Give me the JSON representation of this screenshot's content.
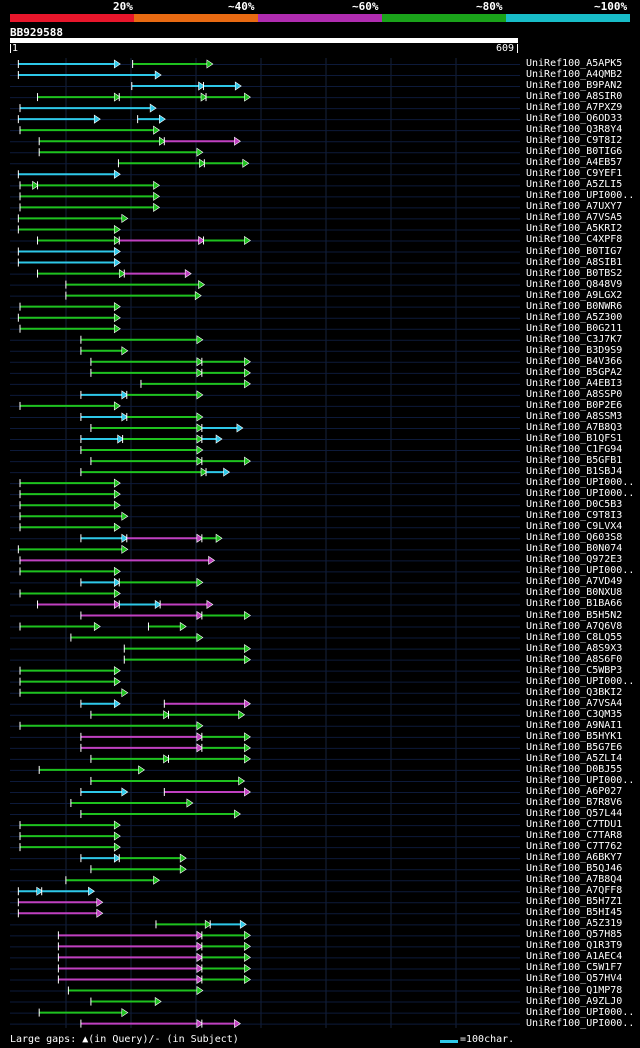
{
  "identity_legend": {
    "labels": [
      "20%",
      "~40%",
      "~60%",
      "~80%",
      "~100%"
    ],
    "colors": [
      "#e8162b",
      "#e86a12",
      "#b02cb0",
      "#1aa31a",
      "#18bcc8"
    ]
  },
  "query": {
    "id": "BB929588",
    "start": "1",
    "end": "609",
    "length": 609
  },
  "colors": {
    "cyan": "#2ec8e8",
    "green": "#1ec21e",
    "magenta": "#c040c0",
    "gridline": "#1e2a44",
    "white": "#ffffff"
  },
  "hits": [
    {
      "label": "UniRef100_A5APK5",
      "segs": [
        [
          10,
          131,
          "c"
        ],
        [
          147,
          242,
          "g"
        ]
      ]
    },
    {
      "label": "UniRef100_A4QMB2",
      "segs": [
        [
          10,
          180,
          "c"
        ]
      ]
    },
    {
      "label": "UniRef100_B9PAN2",
      "segs": [
        [
          146,
          232,
          "c"
        ],
        [
          232,
          276,
          "c"
        ]
      ]
    },
    {
      "label": "UniRef100_A8SIR0",
      "segs": [
        [
          33,
          131,
          "g"
        ],
        [
          131,
          235,
          "g"
        ],
        [
          235,
          287,
          "g"
        ]
      ]
    },
    {
      "label": "UniRef100_A7PXZ9",
      "segs": [
        [
          12,
          174,
          "c"
        ]
      ]
    },
    {
      "label": "UniRef100_Q6OD33",
      "segs": [
        [
          10,
          107,
          "c"
        ],
        [
          153,
          185,
          "c"
        ]
      ]
    },
    {
      "label": "UniRef100_Q3R8Y4",
      "segs": [
        [
          12,
          178,
          "g"
        ]
      ]
    },
    {
      "label": "UniRef100_C9T8I2",
      "segs": [
        [
          35,
          185,
          "g"
        ],
        [
          185,
          275,
          "m"
        ]
      ]
    },
    {
      "label": "UniRef100_B0TIG6",
      "segs": [
        [
          35,
          230,
          "g"
        ]
      ]
    },
    {
      "label": "UniRef100_A4EB57",
      "segs": [
        [
          130,
          233,
          "g"
        ],
        [
          233,
          285,
          "g"
        ]
      ]
    },
    {
      "label": "UniRef100_C9YEF1",
      "segs": [
        [
          10,
          131,
          "c"
        ]
      ]
    },
    {
      "label": "UniRef100_A5ZLI5",
      "segs": [
        [
          12,
          33,
          "g"
        ],
        [
          33,
          178,
          "g"
        ]
      ]
    },
    {
      "label": "UniRef100_UPI000..",
      "segs": [
        [
          12,
          178,
          "g"
        ]
      ]
    },
    {
      "label": "UniRef100_A7UXY7",
      "segs": [
        [
          12,
          178,
          "g"
        ]
      ]
    },
    {
      "label": "UniRef100_A7VSA5",
      "segs": [
        [
          10,
          140,
          "g"
        ]
      ]
    },
    {
      "label": "UniRef100_A5KRI2",
      "segs": [
        [
          10,
          131,
          "g"
        ]
      ]
    },
    {
      "label": "UniRef100_C4XPF8",
      "segs": [
        [
          33,
          131,
          "g"
        ],
        [
          131,
          232,
          "m"
        ],
        [
          232,
          287,
          "g"
        ]
      ]
    },
    {
      "label": "UniRef100_B0TIG7",
      "segs": [
        [
          10,
          131,
          "c"
        ]
      ]
    },
    {
      "label": "UniRef100_A8SIB1",
      "segs": [
        [
          10,
          131,
          "c"
        ]
      ]
    },
    {
      "label": "UniRef100_B0TBS2",
      "segs": [
        [
          33,
          137,
          "g"
        ],
        [
          137,
          216,
          "m"
        ]
      ]
    },
    {
      "label": "UniRef100_Q848V9",
      "segs": [
        [
          67,
          232,
          "g"
        ]
      ]
    },
    {
      "label": "UniRef100_A9LGX2",
      "segs": [
        [
          67,
          228,
          "g"
        ]
      ]
    },
    {
      "label": "UniRef100_B0NWR6",
      "segs": [
        [
          12,
          131,
          "g"
        ]
      ]
    },
    {
      "label": "UniRef100_A5Z300",
      "segs": [
        [
          10,
          131,
          "g"
        ]
      ]
    },
    {
      "label": "UniRef100_B0G211",
      "segs": [
        [
          12,
          131,
          "g"
        ]
      ]
    },
    {
      "label": "UniRef100_C3J7K7",
      "segs": [
        [
          85,
          230,
          "g"
        ]
      ]
    },
    {
      "label": "UniRef100_B3D9S9",
      "segs": [
        [
          85,
          140,
          "g"
        ]
      ]
    },
    {
      "label": "UniRef100_B4V366",
      "segs": [
        [
          97,
          230,
          "g"
        ],
        [
          230,
          287,
          "g"
        ]
      ]
    },
    {
      "label": "UniRef100_B5GPA2",
      "segs": [
        [
          97,
          230,
          "g"
        ],
        [
          230,
          287,
          "g"
        ]
      ]
    },
    {
      "label": "UniRef100_A4EBI3",
      "segs": [
        [
          157,
          287,
          "g"
        ]
      ]
    },
    {
      "label": "UniRef100_A8SSP0",
      "segs": [
        [
          85,
          140,
          "c"
        ],
        [
          140,
          230,
          "g"
        ]
      ]
    },
    {
      "label": "UniRef100_B0P2E6",
      "segs": [
        [
          12,
          131,
          "g"
        ]
      ]
    },
    {
      "label": "UniRef100_A8SSM3",
      "segs": [
        [
          85,
          140,
          "c"
        ],
        [
          140,
          230,
          "g"
        ]
      ]
    },
    {
      "label": "UniRef100_A7B8Q3",
      "segs": [
        [
          97,
          230,
          "g"
        ],
        [
          230,
          278,
          "c"
        ]
      ]
    },
    {
      "label": "UniRef100_B1QFS1",
      "segs": [
        [
          85,
          135,
          "c"
        ],
        [
          135,
          230,
          "g"
        ],
        [
          230,
          253,
          "c"
        ]
      ]
    },
    {
      "label": "UniRef100_C1FG94",
      "segs": [
        [
          85,
          230,
          "g"
        ]
      ]
    },
    {
      "label": "UniRef100_B5GFB1",
      "segs": [
        [
          97,
          230,
          "g"
        ],
        [
          230,
          287,
          "g"
        ]
      ]
    },
    {
      "label": "UniRef100_B1SBJ4",
      "segs": [
        [
          85,
          235,
          "g"
        ],
        [
          235,
          262,
          "c"
        ]
      ]
    },
    {
      "label": "UniRef100_UPI000..",
      "segs": [
        [
          12,
          131,
          "g"
        ]
      ]
    },
    {
      "label": "UniRef100_UPI000..",
      "segs": [
        [
          12,
          131,
          "g"
        ]
      ]
    },
    {
      "label": "UniRef100_D0C5B3",
      "segs": [
        [
          12,
          131,
          "g"
        ]
      ]
    },
    {
      "label": "UniRef100_C9T8I3",
      "segs": [
        [
          12,
          140,
          "g"
        ]
      ]
    },
    {
      "label": "UniRef100_C9LVX4",
      "segs": [
        [
          12,
          131,
          "g"
        ]
      ]
    },
    {
      "label": "UniRef100_Q603S8",
      "segs": [
        [
          85,
          140,
          "c"
        ],
        [
          140,
          230,
          "m"
        ],
        [
          230,
          253,
          "g"
        ]
      ]
    },
    {
      "label": "UniRef100_B0N074",
      "segs": [
        [
          10,
          140,
          "g"
        ]
      ]
    },
    {
      "label": "UniRef100_Q972E3",
      "segs": [
        [
          12,
          244,
          "m"
        ]
      ]
    },
    {
      "label": "UniRef100_UPI000..",
      "segs": [
        [
          12,
          131,
          "g"
        ]
      ]
    },
    {
      "label": "UniRef100_A7VD49",
      "segs": [
        [
          85,
          131,
          "c"
        ],
        [
          131,
          230,
          "g"
        ]
      ]
    },
    {
      "label": "UniRef100_B0NXU8",
      "segs": [
        [
          12,
          131,
          "g"
        ]
      ]
    },
    {
      "label": "UniRef100_B1BA66",
      "segs": [
        [
          33,
          131,
          "m"
        ],
        [
          131,
          180,
          "c"
        ],
        [
          180,
          242,
          "m"
        ]
      ]
    },
    {
      "label": "UniRef100_B5H5N2",
      "segs": [
        [
          85,
          230,
          "m"
        ],
        [
          230,
          287,
          "g"
        ]
      ]
    },
    {
      "label": "UniRef100_A7Q6V8",
      "segs": [
        [
          12,
          107,
          "g"
        ],
        [
          166,
          210,
          "g"
        ]
      ]
    },
    {
      "label": "UniRef100_C8LQ55",
      "segs": [
        [
          73,
          230,
          "g"
        ]
      ]
    },
    {
      "label": "UniRef100_A8S9X3",
      "segs": [
        [
          137,
          287,
          "g"
        ]
      ]
    },
    {
      "label": "UniRef100_A8S6F0",
      "segs": [
        [
          137,
          287,
          "g"
        ]
      ]
    },
    {
      "label": "UniRef100_C5WBP3",
      "segs": [
        [
          12,
          131,
          "g"
        ]
      ]
    },
    {
      "label": "UniRef100_UPI000..",
      "segs": [
        [
          12,
          131,
          "g"
        ]
      ]
    },
    {
      "label": "UniRef100_Q3BKI2",
      "segs": [
        [
          12,
          140,
          "g"
        ]
      ]
    },
    {
      "label": "UniRef100_A7VSA4",
      "segs": [
        [
          85,
          131,
          "c"
        ],
        [
          185,
          287,
          "m"
        ]
      ]
    },
    {
      "label": "UniRef100_C3QM35",
      "segs": [
        [
          97,
          190,
          "g"
        ],
        [
          190,
          280,
          "g"
        ]
      ]
    },
    {
      "label": "UniRef100_A9NAI1",
      "segs": [
        [
          12,
          230,
          "g"
        ]
      ]
    },
    {
      "label": "UniRef100_B5HYK1",
      "segs": [
        [
          85,
          230,
          "m"
        ],
        [
          230,
          287,
          "g"
        ]
      ]
    },
    {
      "label": "UniRef100_B5G7E6",
      "segs": [
        [
          85,
          230,
          "m"
        ],
        [
          230,
          287,
          "g"
        ]
      ]
    },
    {
      "label": "UniRef100_A5ZLI4",
      "segs": [
        [
          97,
          190,
          "g"
        ],
        [
          190,
          287,
          "g"
        ]
      ]
    },
    {
      "label": "UniRef100_D0BJ55",
      "segs": [
        [
          35,
          160,
          "g"
        ]
      ]
    },
    {
      "label": "UniRef100_UPI000..",
      "segs": [
        [
          97,
          280,
          "g"
        ]
      ]
    },
    {
      "label": "UniRef100_A6P027",
      "segs": [
        [
          85,
          140,
          "c"
        ],
        [
          185,
          287,
          "m"
        ]
      ]
    },
    {
      "label": "UniRef100_B7R8V6",
      "segs": [
        [
          73,
          218,
          "g"
        ]
      ]
    },
    {
      "label": "UniRef100_Q57L44",
      "segs": [
        [
          85,
          275,
          "g"
        ]
      ]
    },
    {
      "label": "UniRef100_C7TDU1",
      "segs": [
        [
          12,
          131,
          "g"
        ]
      ]
    },
    {
      "label": "UniRef100_C7TAR8",
      "segs": [
        [
          12,
          131,
          "g"
        ]
      ]
    },
    {
      "label": "UniRef100_C7T762",
      "segs": [
        [
          12,
          131,
          "g"
        ]
      ]
    },
    {
      "label": "UniRef100_A6BKY7",
      "segs": [
        [
          85,
          131,
          "c"
        ],
        [
          131,
          210,
          "g"
        ]
      ]
    },
    {
      "label": "UniRef100_B5QJ46",
      "segs": [
        [
          97,
          210,
          "g"
        ]
      ]
    },
    {
      "label": "UniRef100_A7B8Q4",
      "segs": [
        [
          67,
          178,
          "g"
        ]
      ]
    },
    {
      "label": "UniRef100_A7QFF8",
      "segs": [
        [
          10,
          38,
          "c"
        ],
        [
          38,
          100,
          "c"
        ]
      ]
    },
    {
      "label": "UniRef100_B5H7Z1",
      "segs": [
        [
          10,
          110,
          "m"
        ]
      ]
    },
    {
      "label": "UniRef100_B5HI45",
      "segs": [
        [
          10,
          110,
          "m"
        ]
      ]
    },
    {
      "label": "UniRef100_A5Z319",
      "segs": [
        [
          175,
          240,
          "g"
        ],
        [
          240,
          282,
          "c"
        ]
      ]
    },
    {
      "label": "UniRef100_Q57H85",
      "segs": [
        [
          58,
          230,
          "m"
        ],
        [
          230,
          287,
          "g"
        ]
      ]
    },
    {
      "label": "UniRef100_Q1R3T9",
      "segs": [
        [
          58,
          230,
          "m"
        ],
        [
          230,
          287,
          "g"
        ]
      ]
    },
    {
      "label": "UniRef100_A1AEC4",
      "segs": [
        [
          58,
          230,
          "m"
        ],
        [
          230,
          287,
          "g"
        ]
      ]
    },
    {
      "label": "UniRef100_C5W1F7",
      "segs": [
        [
          58,
          230,
          "m"
        ],
        [
          230,
          287,
          "g"
        ]
      ]
    },
    {
      "label": "UniRef100_Q57HV4",
      "segs": [
        [
          58,
          230,
          "m"
        ],
        [
          230,
          287,
          "g"
        ]
      ]
    },
    {
      "label": "UniRef100_Q1MP78",
      "segs": [
        [
          70,
          230,
          "g"
        ]
      ]
    },
    {
      "label": "UniRef100_A9ZLJ0",
      "segs": [
        [
          97,
          180,
          "g"
        ]
      ]
    },
    {
      "label": "UniRef100_UPI000..",
      "segs": [
        [
          35,
          140,
          "g"
        ]
      ]
    },
    {
      "label": "UniRef100_UPI000..",
      "segs": [
        [
          85,
          230,
          "m"
        ],
        [
          230,
          275,
          "m"
        ]
      ]
    }
  ],
  "footer": {
    "large_gaps_text": "Large gaps: ▲(in Query)/- (in Subject)",
    "scale_text": "=100char."
  }
}
